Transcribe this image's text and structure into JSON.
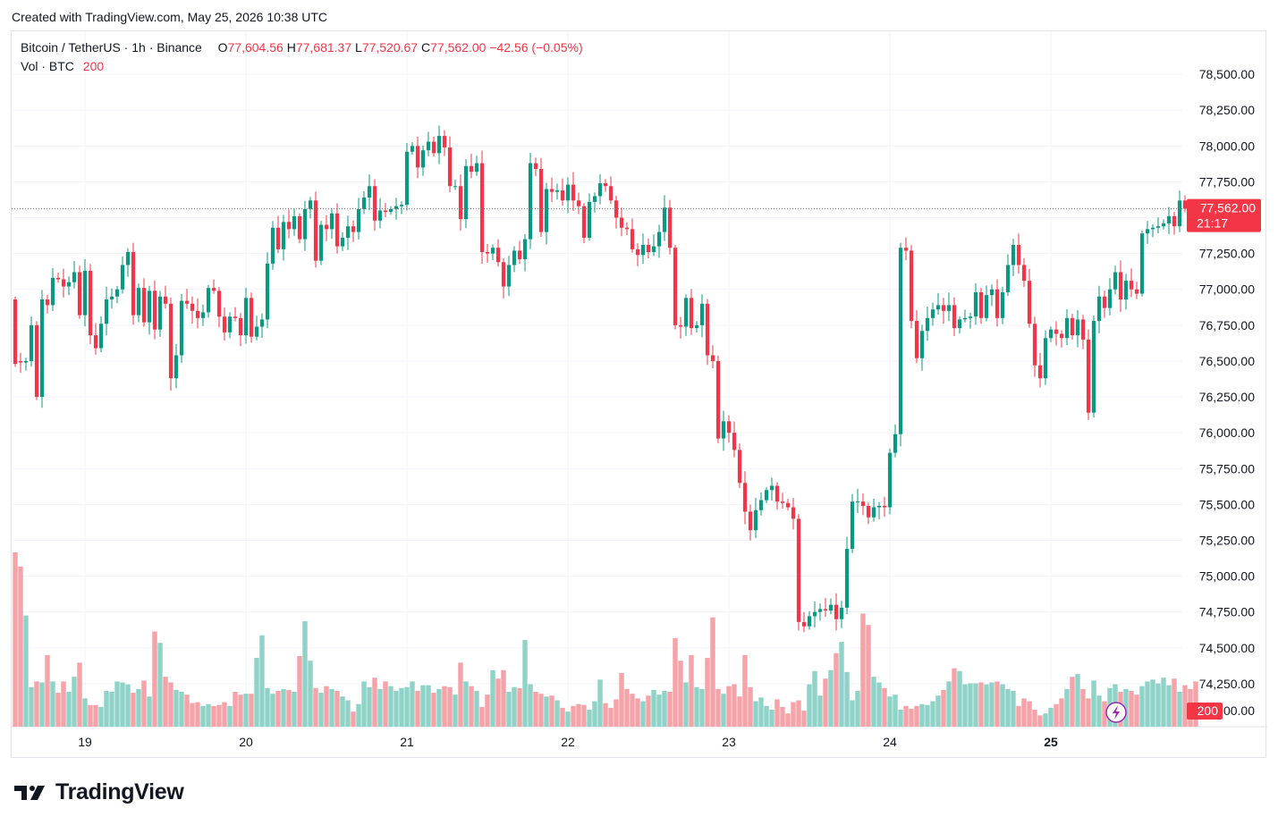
{
  "header": {
    "created_with": "Created with TradingView.com, May 25, 2026 10:38 UTC"
  },
  "legend": {
    "symbol": "Bitcoin / TetherUS · 1h · Binance",
    "o_label": "O",
    "o_value": "77,604.56",
    "h_label": "H",
    "h_value": "77,681.37",
    "l_label": "L",
    "l_value": "77,520.67",
    "c_label": "C",
    "c_value": "77,562.00",
    "change": "−42.56 (−0.05%)",
    "vol_label": "Vol · BTC",
    "vol_value": "200"
  },
  "price_badge": {
    "price": "77,562.00",
    "countdown": "21:17"
  },
  "volume_badge": "200",
  "brand": {
    "name": "TradingView"
  },
  "colors": {
    "up": "#089981",
    "down": "#f23645",
    "vol_up": "#8fd3c8",
    "vol_down": "#f5a3a8",
    "grid": "#f0f3fa",
    "text": "#131722"
  },
  "chart_data": {
    "type": "candlestick",
    "title": "Bitcoin / TetherUS · 1h · Binance",
    "ylim": [
      73950,
      78800
    ],
    "y_ticks": [
      78500,
      78250,
      78000,
      77750,
      77500,
      77250,
      77000,
      76750,
      76500,
      76250,
      76000,
      75750,
      75500,
      75250,
      75000,
      74750,
      74500,
      74250
    ],
    "y_tick_labels": [
      "78,500.00",
      "78,250.00",
      "78,000.00",
      "77,750.00",
      "77,500.00",
      "77,250.00",
      "77,000.00",
      "76,750.00",
      "76,500.00",
      "76,250.00",
      "76,000.00",
      "75,750.00",
      "75,500.00",
      "75,250.00",
      "75,000.00",
      "74,750.00",
      "74,500.00",
      "74,250.00"
    ],
    "bottom_tick_label": "00.00",
    "x_ticks": [
      {
        "label": "19",
        "bar": 13,
        "bold": false
      },
      {
        "label": "20",
        "bar": 43,
        "bold": false
      },
      {
        "label": "21",
        "bar": 73,
        "bold": false
      },
      {
        "label": "22",
        "bar": 103,
        "bold": false
      },
      {
        "label": "23",
        "bar": 133,
        "bold": false
      },
      {
        "label": "24",
        "bar": 163,
        "bold": false
      },
      {
        "label": "25",
        "bar": 193,
        "bold": true
      }
    ],
    "last_price": 77562,
    "volume_max": 200,
    "candles": [
      [
        76930,
        76480
      ],
      [
        76500,
        76490
      ],
      [
        76490,
        76500
      ],
      [
        76500,
        76750
      ],
      [
        76750,
        76250
      ],
      [
        76250,
        76930
      ],
      [
        76930,
        76890
      ],
      [
        76890,
        77080
      ],
      [
        77080,
        77070
      ],
      [
        77070,
        77020
      ],
      [
        77020,
        77050
      ],
      [
        77050,
        77120
      ],
      [
        77120,
        76820
      ],
      [
        76820,
        77130
      ],
      [
        77130,
        76680
      ],
      [
        76680,
        76590
      ],
      [
        76590,
        76760
      ],
      [
        76760,
        76930
      ],
      [
        76930,
        76950
      ],
      [
        76950,
        77000
      ],
      [
        77000,
        77170
      ],
      [
        77170,
        77260
      ],
      [
        77260,
        76820
      ],
      [
        76820,
        77010
      ],
      [
        77010,
        76770
      ],
      [
        76770,
        76990
      ],
      [
        76990,
        76720
      ],
      [
        76720,
        76950
      ],
      [
        76950,
        76900
      ],
      [
        76900,
        76380
      ],
      [
        76380,
        76540
      ],
      [
        76540,
        76920
      ],
      [
        76920,
        76900
      ],
      [
        76900,
        76850
      ],
      [
        76850,
        76800
      ],
      [
        76800,
        76840
      ],
      [
        76840,
        77010
      ],
      [
        77010,
        76990
      ],
      [
        76990,
        76810
      ],
      [
        76810,
        76700
      ],
      [
        76700,
        76810
      ],
      [
        76810,
        76800
      ],
      [
        76800,
        76680
      ],
      [
        76680,
        76940
      ],
      [
        76940,
        76670
      ],
      [
        76670,
        76740
      ],
      [
        76740,
        76790
      ],
      [
        76790,
        77180
      ],
      [
        77180,
        77430
      ],
      [
        77430,
        77280
      ],
      [
        77280,
        77470
      ],
      [
        77470,
        77420
      ],
      [
        77420,
        77510
      ],
      [
        77510,
        77350
      ],
      [
        77350,
        77560
      ],
      [
        77560,
        77620
      ],
      [
        77620,
        77200
      ],
      [
        77200,
        77450
      ],
      [
        77450,
        77420
      ],
      [
        77420,
        77530
      ],
      [
        77530,
        77300
      ],
      [
        77300,
        77360
      ],
      [
        77360,
        77440
      ],
      [
        77440,
        77400
      ],
      [
        77400,
        77560
      ],
      [
        77560,
        77640
      ],
      [
        77640,
        77720
      ],
      [
        77720,
        77480
      ],
      [
        77480,
        77550
      ],
      [
        77550,
        77540
      ],
      [
        77540,
        77560
      ],
      [
        77560,
        77580
      ],
      [
        77580,
        77590
      ],
      [
        77590,
        77960
      ],
      [
        77960,
        78000
      ],
      [
        78000,
        77850
      ],
      [
        77850,
        77970
      ],
      [
        77970,
        78030
      ],
      [
        78030,
        77950
      ],
      [
        77950,
        78070
      ],
      [
        78070,
        77990
      ],
      [
        77990,
        77720
      ],
      [
        77720,
        77720
      ],
      [
        77720,
        77490
      ],
      [
        77490,
        77860
      ],
      [
        77860,
        77820
      ],
      [
        77820,
        77880
      ],
      [
        77880,
        77260
      ],
      [
        77260,
        77250
      ],
      [
        77250,
        77290
      ],
      [
        77290,
        77190
      ],
      [
        77190,
        77020
      ],
      [
        77020,
        77170
      ],
      [
        77170,
        77270
      ],
      [
        77270,
        77210
      ],
      [
        77210,
        77350
      ],
      [
        77350,
        77880
      ],
      [
        77880,
        77840
      ],
      [
        77840,
        77400
      ],
      [
        77400,
        77700
      ],
      [
        77700,
        77680
      ],
      [
        77680,
        77690
      ],
      [
        77690,
        77620
      ],
      [
        77620,
        77730
      ],
      [
        77730,
        77620
      ],
      [
        77620,
        77580
      ],
      [
        77580,
        77360
      ],
      [
        77360,
        77610
      ],
      [
        77610,
        77650
      ],
      [
        77650,
        77740
      ],
      [
        77740,
        77720
      ],
      [
        77720,
        77620
      ],
      [
        77620,
        77500
      ],
      [
        77500,
        77430
      ],
      [
        77430,
        77420
      ],
      [
        77420,
        77280
      ],
      [
        77280,
        77240
      ],
      [
        77240,
        77310
      ],
      [
        77310,
        77260
      ],
      [
        77260,
        77300
      ],
      [
        77300,
        77400
      ],
      [
        77400,
        77570
      ],
      [
        77570,
        77290
      ],
      [
        77290,
        76750
      ],
      [
        76750,
        76740
      ],
      [
        76740,
        76940
      ],
      [
        76940,
        76730
      ],
      [
        76730,
        76750
      ],
      [
        76750,
        76900
      ],
      [
        76900,
        76540
      ],
      [
        76540,
        76500
      ],
      [
        76500,
        75960
      ],
      [
        75960,
        76080
      ],
      [
        76080,
        76000
      ],
      [
        76000,
        75880
      ],
      [
        75880,
        75650
      ],
      [
        75650,
        75450
      ],
      [
        75450,
        75320
      ],
      [
        75320,
        75460
      ],
      [
        75460,
        75530
      ],
      [
        75530,
        75600
      ],
      [
        75600,
        75630
      ],
      [
        75630,
        75520
      ],
      [
        75520,
        75510
      ],
      [
        75510,
        75480
      ],
      [
        75480,
        75400
      ],
      [
        75400,
        74680
      ],
      [
        74680,
        74650
      ],
      [
        74650,
        74720
      ],
      [
        74720,
        74750
      ],
      [
        74750,
        74770
      ],
      [
        74770,
        74760
      ],
      [
        74760,
        74800
      ],
      [
        74800,
        74700
      ],
      [
        74700,
        74780
      ],
      [
        74780,
        75190
      ],
      [
        75190,
        75520
      ],
      [
        75520,
        75520
      ],
      [
        75520,
        75490
      ],
      [
        75490,
        75410
      ],
      [
        75410,
        75480
      ],
      [
        75480,
        75490
      ],
      [
        75490,
        75480
      ],
      [
        75480,
        75860
      ],
      [
        75860,
        75990
      ],
      [
        75990,
        77290
      ],
      [
        77290,
        77270
      ],
      [
        77270,
        76780
      ],
      [
        76780,
        76520
      ],
      [
        76520,
        76710
      ],
      [
        76710,
        76800
      ],
      [
        76800,
        76860
      ],
      [
        76860,
        76890
      ],
      [
        76890,
        76850
      ],
      [
        76850,
        76890
      ],
      [
        76890,
        76730
      ],
      [
        76730,
        76790
      ],
      [
        76790,
        76800
      ],
      [
        76800,
        76810
      ],
      [
        76810,
        76980
      ],
      [
        76980,
        76800
      ],
      [
        76800,
        76960
      ],
      [
        76960,
        77000
      ],
      [
        77000,
        76800
      ],
      [
        76800,
        76980
      ],
      [
        76980,
        77170
      ],
      [
        77170,
        77310
      ],
      [
        77310,
        77170
      ],
      [
        77170,
        77060
      ],
      [
        77060,
        76760
      ],
      [
        76760,
        76470
      ],
      [
        76470,
        76380
      ],
      [
        76380,
        76660
      ],
      [
        76660,
        76720
      ],
      [
        76720,
        76690
      ],
      [
        76690,
        76660
      ],
      [
        76660,
        76800
      ],
      [
        76800,
        76680
      ],
      [
        76680,
        76790
      ],
      [
        76790,
        76650
      ],
      [
        76650,
        76140
      ],
      [
        76140,
        76780
      ],
      [
        76780,
        76950
      ],
      [
        76950,
        76870
      ],
      [
        76870,
        77000
      ],
      [
        77000,
        77120
      ],
      [
        77120,
        76930
      ],
      [
        76930,
        77060
      ],
      [
        77060,
        77000
      ],
      [
        77000,
        76970
      ],
      [
        76970,
        77390
      ],
      [
        77390,
        77420
      ],
      [
        77420,
        77430
      ],
      [
        77430,
        77440
      ],
      [
        77440,
        77460
      ],
      [
        77460,
        77510
      ],
      [
        77510,
        77440
      ],
      [
        77440,
        77620
      ],
      [
        77620,
        77562
      ]
    ],
    "volumes": [
      185,
      170,
      118,
      42,
      48,
      47,
      76,
      48,
      36,
      48,
      37,
      53,
      68,
      30,
      23,
      23,
      21,
      38,
      37,
      48,
      47,
      45,
      36,
      40,
      49,
      32,
      101,
      89,
      53,
      47,
      39,
      37,
      34,
      25,
      26,
      22,
      24,
      22,
      23,
      26,
      22,
      37,
      34,
      35,
      35,
      73,
      97,
      41,
      35,
      38,
      40,
      39,
      37,
      75,
      112,
      70,
      41,
      36,
      43,
      40,
      38,
      32,
      28,
      16,
      24,
      48,
      42,
      52,
      40,
      48,
      43,
      38,
      41,
      42,
      48,
      38,
      44,
      44,
      36,
      40,
      43,
      42,
      34,
      68,
      48,
      43,
      38,
      21,
      34,
      60,
      51,
      60,
      37,
      42,
      41,
      92,
      45,
      37,
      35,
      32,
      33,
      28,
      20,
      16,
      22,
      24,
      23,
      18,
      27,
      50,
      25,
      20,
      29,
      57,
      40,
      35,
      30,
      27,
      33,
      39,
      34,
      38,
      37,
      94,
      70,
      47,
      76,
      42,
      40,
      73,
      116,
      40,
      35,
      43,
      45,
      32,
      76,
      42,
      27,
      31,
      22,
      18,
      29,
      21,
      14,
      26,
      28,
      17,
      45,
      59,
      33,
      51,
      60,
      78,
      90,
      58,
      28,
      38,
      120,
      108,
      53,
      47,
      41,
      32,
      34,
      18,
      22,
      19,
      22,
      24,
      23,
      27,
      33,
      39,
      48,
      62,
      59,
      45,
      46,
      46,
      47,
      45,
      47,
      48,
      45,
      40,
      38,
      22,
      30,
      27,
      18,
      12,
      14,
      20,
      24,
      30,
      40,
      53,
      56,
      40,
      30,
      49,
      33,
      27,
      41,
      45,
      37,
      40,
      38,
      34,
      43,
      48,
      50,
      46,
      52,
      44,
      51,
      37,
      44,
      40,
      48
    ]
  }
}
